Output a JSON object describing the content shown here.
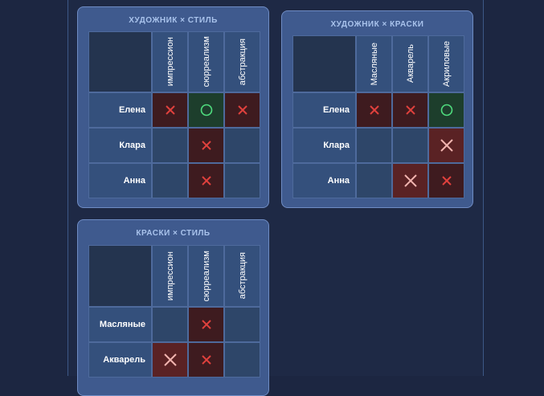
{
  "grids": [
    {
      "title": "ХУДОЖНИК × СТИЛЬ",
      "columns": [
        "импрессион",
        "сюрреализм",
        "абстракция"
      ],
      "rows": [
        "Елена",
        "Клара",
        "Анна"
      ],
      "cells": [
        [
          "cross",
          "circle",
          "cross"
        ],
        [
          "empty",
          "cross",
          "empty"
        ],
        [
          "empty",
          "cross",
          "empty"
        ]
      ]
    },
    {
      "title": "ХУДОЖНИК × КРАСКИ",
      "columns": [
        "Масляные",
        "Акварель",
        "Акриловые"
      ],
      "rows": [
        "Елена",
        "Клара",
        "Анна"
      ],
      "cells": [
        [
          "cross",
          "cross",
          "circle"
        ],
        [
          "empty",
          "empty",
          "mark"
        ],
        [
          "empty",
          "mark",
          "cross"
        ]
      ]
    },
    {
      "title": "КРАСКИ × СТИЛЬ",
      "columns": [
        "импрессион",
        "сюрреализм",
        "абстракция"
      ],
      "rows": [
        "Масляные",
        "Акварель"
      ],
      "cells": [
        [
          "empty",
          "cross",
          "empty"
        ],
        [
          "mark",
          "cross",
          "empty"
        ]
      ]
    }
  ]
}
